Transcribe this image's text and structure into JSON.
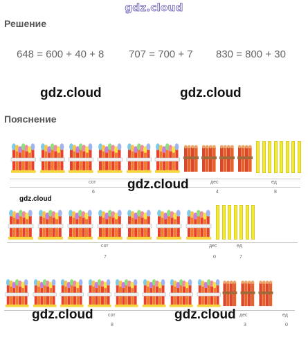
{
  "header": {
    "site_logo": "gdz.cloud"
  },
  "solution": {
    "heading": "Решение",
    "equations": [
      "648 = 600 + 40 + 8",
      "707 = 700 + 7",
      "830 = 800 + 30"
    ]
  },
  "watermarks": {
    "text": "gdz.cloud",
    "small": "gdz.cloud"
  },
  "explanation": {
    "heading": "Пояснение",
    "rows": [
      {
        "hundreds": 6,
        "tens": 4,
        "ones": 8,
        "labels": {
          "hundreds": "сот",
          "tens": "дес",
          "ones": "ед"
        },
        "values": {
          "hundreds": "6",
          "tens": "4",
          "ones": "8"
        }
      },
      {
        "hundreds": 7,
        "tens": 0,
        "ones": 7,
        "labels": {
          "hundreds": "сот",
          "tens": "дес",
          "ones": "ед"
        },
        "values": {
          "hundreds": "7",
          "tens": "0",
          "ones": "7"
        }
      },
      {
        "hundreds": 8,
        "tens": 3,
        "ones": 0,
        "labels": {
          "hundreds": "сот",
          "tens": "дес",
          "ones": "ед"
        },
        "values": {
          "hundreds": "8",
          "tens": "3",
          "ones": "0"
        }
      }
    ]
  }
}
